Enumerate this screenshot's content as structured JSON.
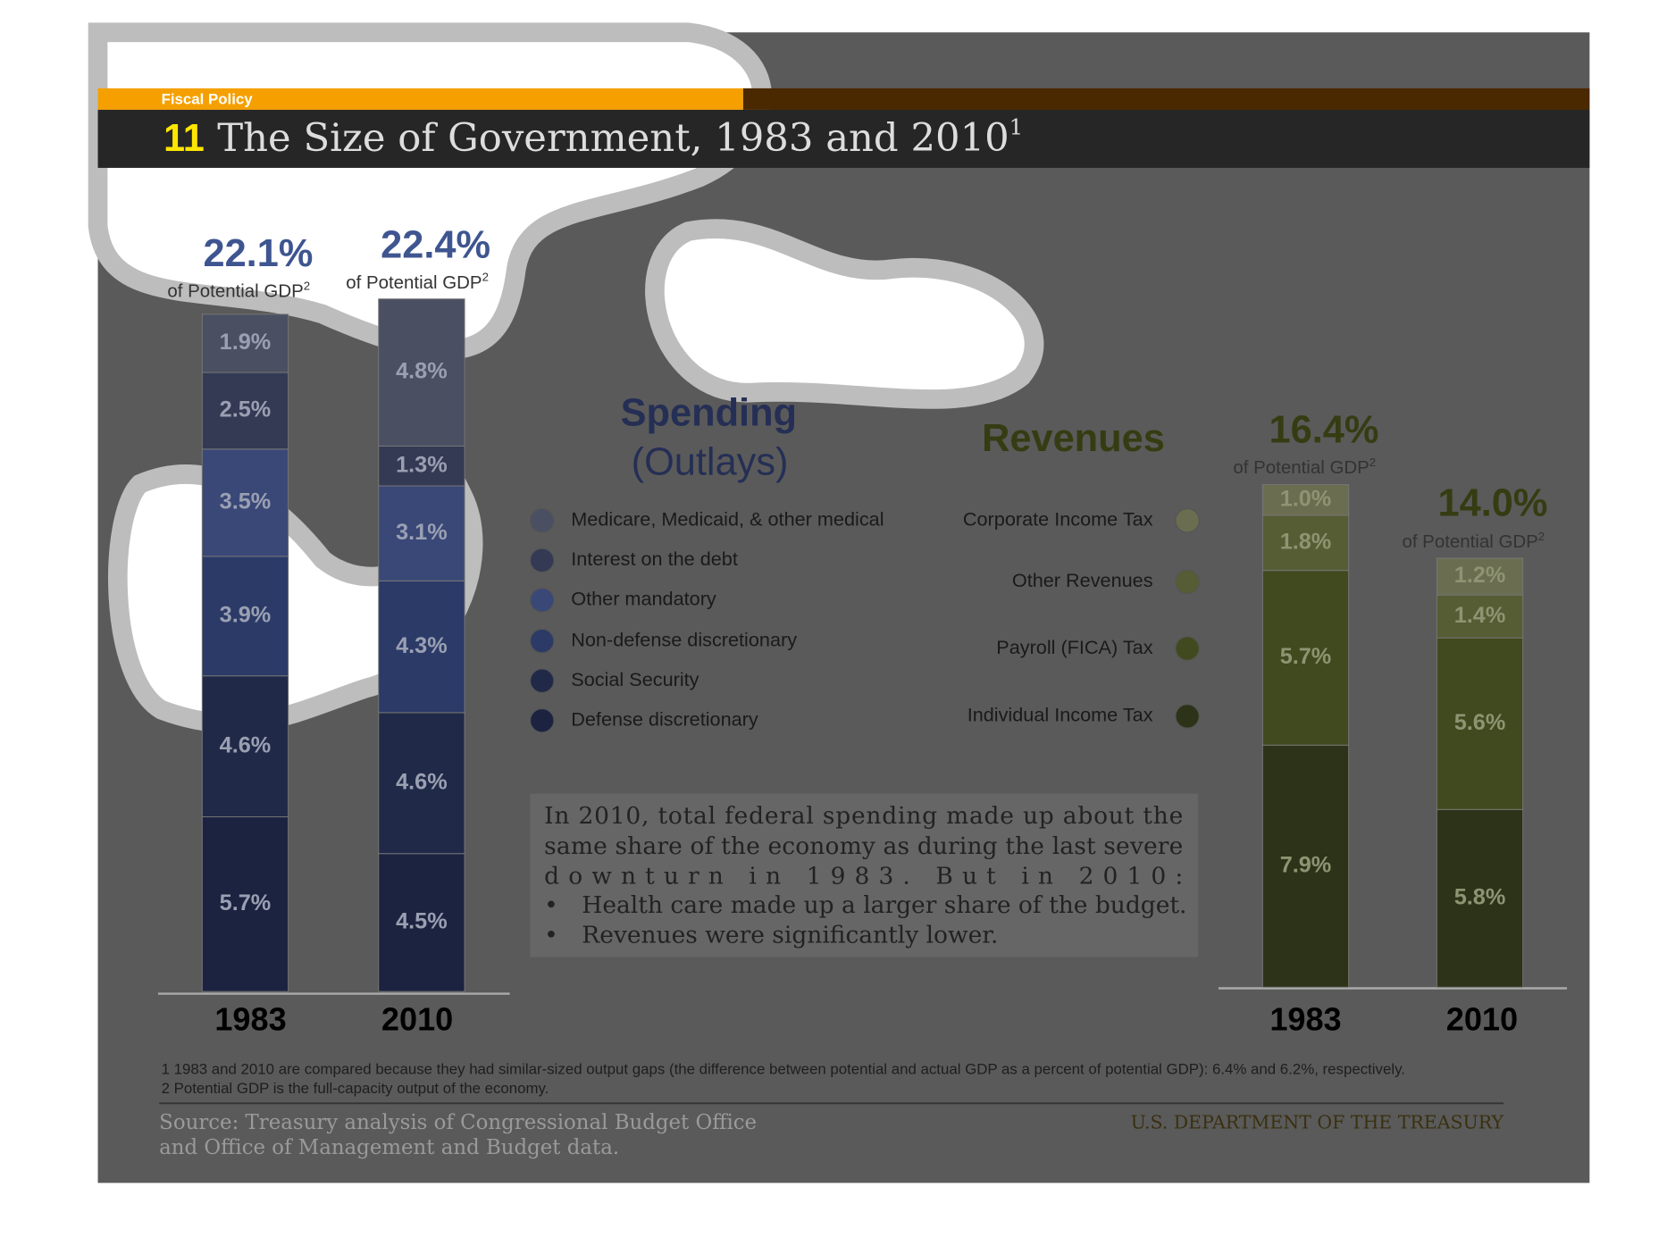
{
  "header": {
    "section": "Fiscal Policy",
    "number": "11",
    "title": "The Size of Government, 1983 and 2010",
    "title_note": "1"
  },
  "chart_data": [
    {
      "type": "bar",
      "stacked": true,
      "title": "Spending",
      "subtitle": "(Outlays)",
      "categories": [
        "1983",
        "2010"
      ],
      "totals": [
        22.1,
        22.4
      ],
      "total_labels": [
        "22.1%",
        "22.4%"
      ],
      "total_caption": "of Potential GDP",
      "total_note": "2",
      "series": [
        {
          "name": "Defense discretionary",
          "color": "#1c2340",
          "values": [
            5.7,
            4.5
          ],
          "value_labels": [
            "5.7%",
            "4.5%"
          ]
        },
        {
          "name": "Social Security",
          "color": "#202a48",
          "values": [
            4.6,
            4.6
          ],
          "value_labels": [
            "4.6%",
            "4.6%"
          ]
        },
        {
          "name": "Non-defense discretionary",
          "color": "#2c3a68",
          "values": [
            3.9,
            4.3
          ],
          "value_labels": [
            "3.9%",
            "4.3%"
          ]
        },
        {
          "name": "Other mandatory",
          "color": "#3a4878",
          "values": [
            3.5,
            3.1
          ],
          "value_labels": [
            "3.5%",
            "3.1%"
          ]
        },
        {
          "name": "Interest on the debt",
          "color": "#343a54",
          "values": [
            2.5,
            1.3
          ],
          "value_labels": [
            "2.5%",
            "1.3%"
          ]
        },
        {
          "name": "Medicare, Medicaid, & other medical",
          "color": "#4a4f62",
          "values": [
            1.9,
            4.8
          ],
          "value_labels": [
            "1.9%",
            "4.8%"
          ]
        }
      ]
    },
    {
      "type": "bar",
      "stacked": true,
      "title": "Revenues",
      "categories": [
        "1983",
        "2010"
      ],
      "totals": [
        16.4,
        14.0
      ],
      "total_labels": [
        "16.4%",
        "14.0%"
      ],
      "total_caption": "of Potential GDP",
      "total_note": "2",
      "series": [
        {
          "name": "Individual Income Tax",
          "color": "#2c3318",
          "values": [
            7.9,
            5.8
          ],
          "value_labels": [
            "7.9%",
            "5.8%"
          ]
        },
        {
          "name": "Payroll (FICA) Tax",
          "color": "#414a1e",
          "values": [
            5.7,
            5.6
          ],
          "value_labels": [
            "5.7%",
            "5.6%"
          ]
        },
        {
          "name": "Other Revenues",
          "color": "#565c34",
          "values": [
            1.8,
            1.4
          ],
          "value_labels": [
            "1.8%",
            "1.4%"
          ]
        },
        {
          "name": "Corporate Income Tax",
          "color": "#6a6d50",
          "values": [
            1.0,
            1.2
          ],
          "value_labels": [
            "1.0%",
            "1.2%"
          ]
        }
      ]
    }
  ],
  "textbox": {
    "lines": [
      "In 2010, total federal spending made up about the",
      "same share of the economy as during the last severe",
      "downturn in 1983. But in 2010:"
    ],
    "bullets": [
      "Health care made up a larger share of the budget.",
      "Revenues were significantly lower."
    ]
  },
  "footnotes": [
    "1 1983 and 2010 are compared because they had similar-sized output gaps (the difference between potential and actual GDP as a percent of potential GDP): 6.4% and 6.2%, respectively.",
    "2 Potential GDP is the full-capacity output of the economy."
  ],
  "source": [
    "Source: Treasury analysis of Congressional Budget Office",
    "and Office of Management and Budget data."
  ],
  "agency": "U.S. DEPARTMENT OF THE TREASURY"
}
